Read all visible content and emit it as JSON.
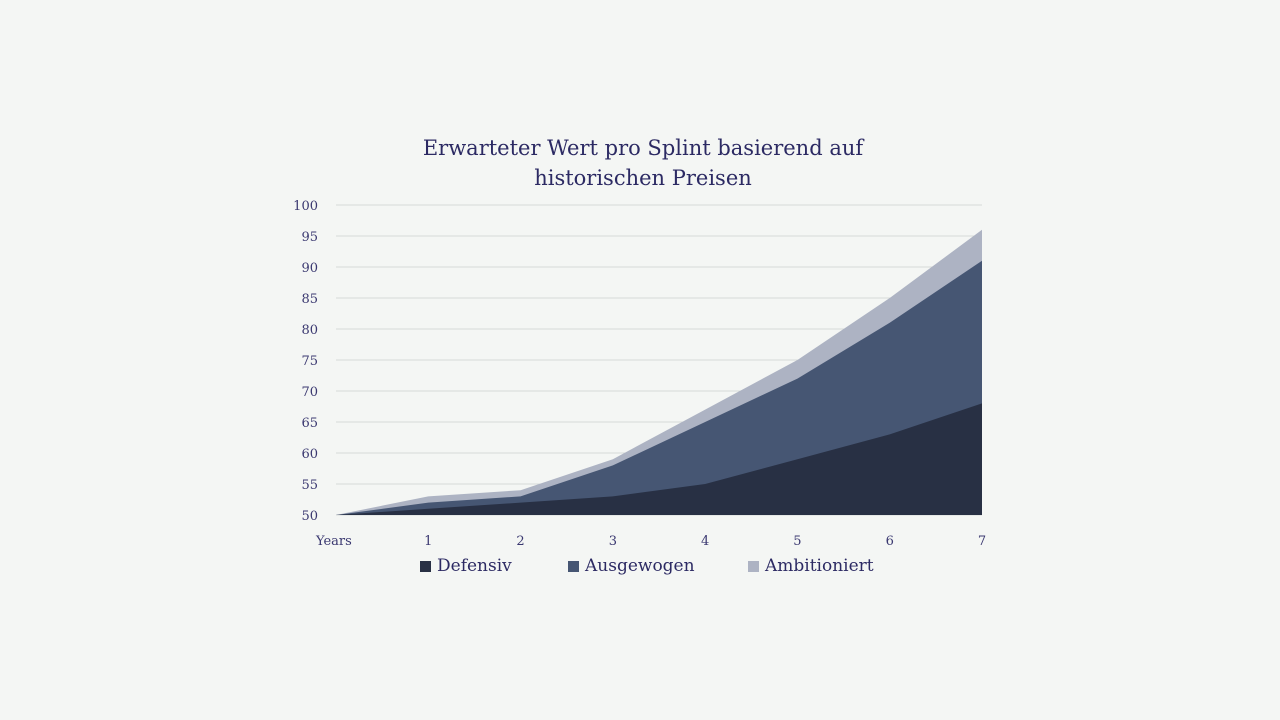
{
  "chart_data": {
    "type": "area",
    "stacked": true,
    "title_lines": [
      "Erwarteter Wert pro Splint basierend auf",
      "historischen Preisen"
    ],
    "xlabel": "",
    "ylabel": "",
    "categories": [
      "Years",
      "1",
      "2",
      "3",
      "4",
      "5",
      "6",
      "7"
    ],
    "ylim": [
      50,
      100
    ],
    "yticks": [
      50,
      55,
      60,
      65,
      70,
      75,
      80,
      85,
      90,
      95,
      100
    ],
    "grid": true,
    "legend_position": "bottom",
    "series": [
      {
        "name": "Defensiv",
        "color": "#283044",
        "values": [
          50,
          51,
          52,
          53,
          55,
          59,
          63,
          68
        ]
      },
      {
        "name": "Ausgewogen",
        "color": "#465673",
        "values": [
          50,
          52,
          53,
          58,
          65,
          72,
          81,
          91
        ]
      },
      {
        "name": "Ambitioniert",
        "color": "#adb3c3",
        "values": [
          50,
          53,
          54,
          59,
          67,
          75,
          85,
          96
        ]
      }
    ]
  }
}
